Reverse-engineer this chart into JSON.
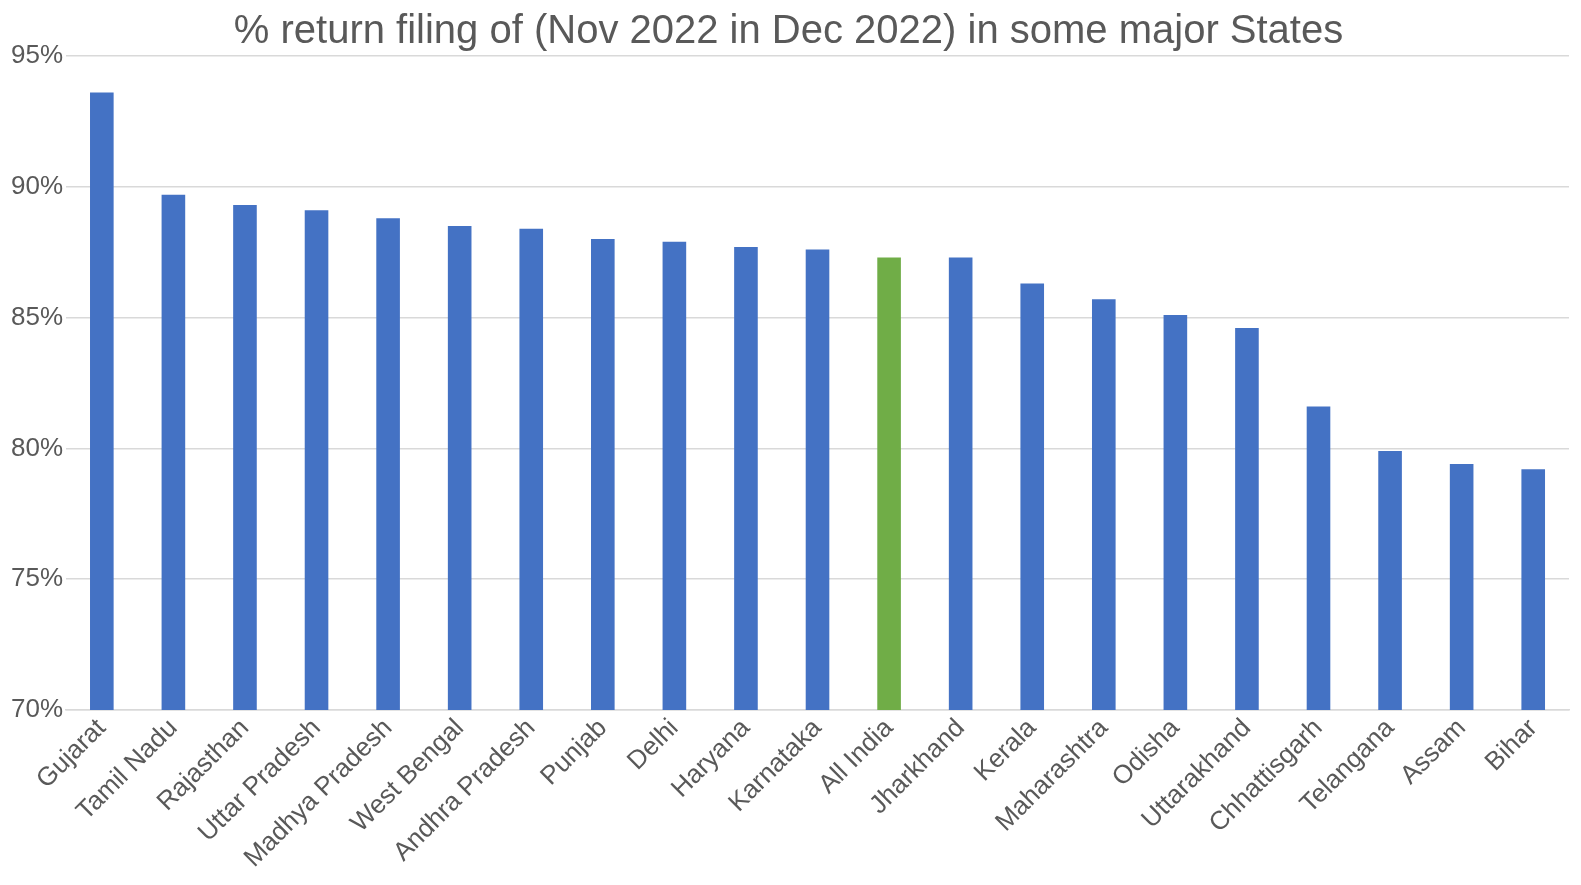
{
  "chart_data": {
    "type": "bar",
    "title": "% return filing of (Nov 2022 in Dec 2022) in some major States",
    "categories": [
      "Gujarat",
      "Tamil Nadu",
      "Rajasthan",
      "Uttar Pradesh",
      "Madhya Pradesh",
      "West Bengal",
      "Andhra Pradesh",
      "Punjab",
      "Delhi",
      "Haryana",
      "Karnataka",
      "All India",
      "Jharkhand",
      "Kerala",
      "Maharashtra",
      "Odisha",
      "Uttarakhand",
      "Chhattisgarh",
      "Telangana",
      "Assam",
      "Bihar"
    ],
    "values": [
      93.6,
      89.7,
      89.3,
      89.1,
      88.8,
      88.5,
      88.4,
      88.0,
      87.9,
      87.7,
      87.6,
      87.3,
      87.3,
      86.3,
      85.7,
      85.1,
      84.6,
      81.6,
      79.9,
      79.4,
      79.2
    ],
    "colors": [
      "#4472c4",
      "#4472c4",
      "#4472c4",
      "#4472c4",
      "#4472c4",
      "#4472c4",
      "#4472c4",
      "#4472c4",
      "#4472c4",
      "#4472c4",
      "#4472c4",
      "#70ad47",
      "#4472c4",
      "#4472c4",
      "#4472c4",
      "#4472c4",
      "#4472c4",
      "#4472c4",
      "#4472c4",
      "#4472c4",
      "#4472c4"
    ],
    "ylim": [
      70,
      95
    ],
    "yticks": [
      {
        "value": 70,
        "label": "70%"
      },
      {
        "value": 75,
        "label": "75%"
      },
      {
        "value": 80,
        "label": "80%"
      },
      {
        "value": 85,
        "label": "85%"
      },
      {
        "value": 90,
        "label": "90%"
      },
      {
        "value": 95,
        "label": "95%"
      }
    ],
    "grid": "y",
    "legend": false
  }
}
